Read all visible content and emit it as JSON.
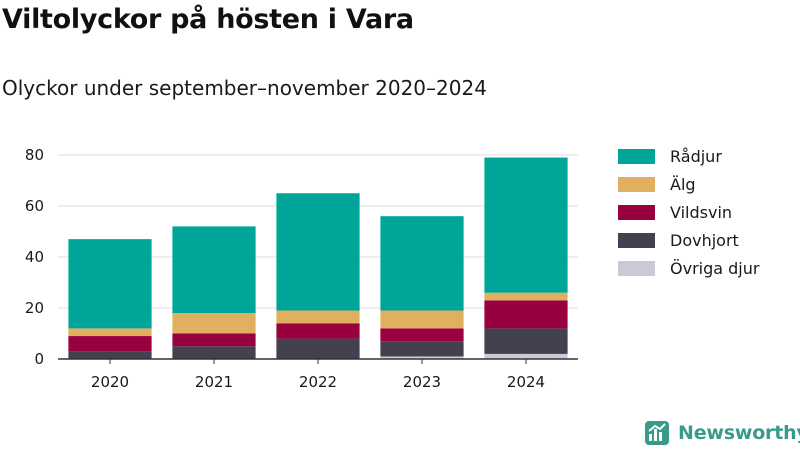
{
  "chart_data": {
    "type": "bar",
    "stacked": true,
    "title": "Viltolyckor på hösten i Vara",
    "subtitle": "Olyckor under september–november 2020–2024",
    "categories": [
      "2020",
      "2021",
      "2022",
      "2023",
      "2024"
    ],
    "ylim": [
      0,
      80
    ],
    "yticks": [
      0,
      20,
      40,
      60,
      80
    ],
    "grid": true,
    "legend_position": "right",
    "series": [
      {
        "name": "Övriga djur",
        "color": "#ccc9d6",
        "values": [
          0,
          0,
          0,
          1,
          2
        ]
      },
      {
        "name": "Dovhjort",
        "color": "#434050",
        "values": [
          3,
          5,
          8,
          6,
          10
        ]
      },
      {
        "name": "Vildsvin",
        "color": "#990040",
        "values": [
          6,
          5,
          6,
          5,
          11
        ]
      },
      {
        "name": "Älg",
        "color": "#e0b060",
        "values": [
          3,
          8,
          5,
          7,
          3
        ]
      },
      {
        "name": "Rådjur",
        "color": "#00a599",
        "values": [
          35,
          34,
          46,
          37,
          53
        ]
      }
    ]
  },
  "legend": {
    "items": [
      {
        "label": "Rådjur",
        "color": "#00a599"
      },
      {
        "label": "Älg",
        "color": "#e0b060"
      },
      {
        "label": "Vildsvin",
        "color": "#990040"
      },
      {
        "label": "Dovhjort",
        "color": "#434050"
      },
      {
        "label": "Övriga djur",
        "color": "#ccc9d6"
      }
    ]
  },
  "brand": {
    "name": "Newsworthy",
    "logo_icon": "bar-chart-icon",
    "color": "#3a9a8a"
  }
}
